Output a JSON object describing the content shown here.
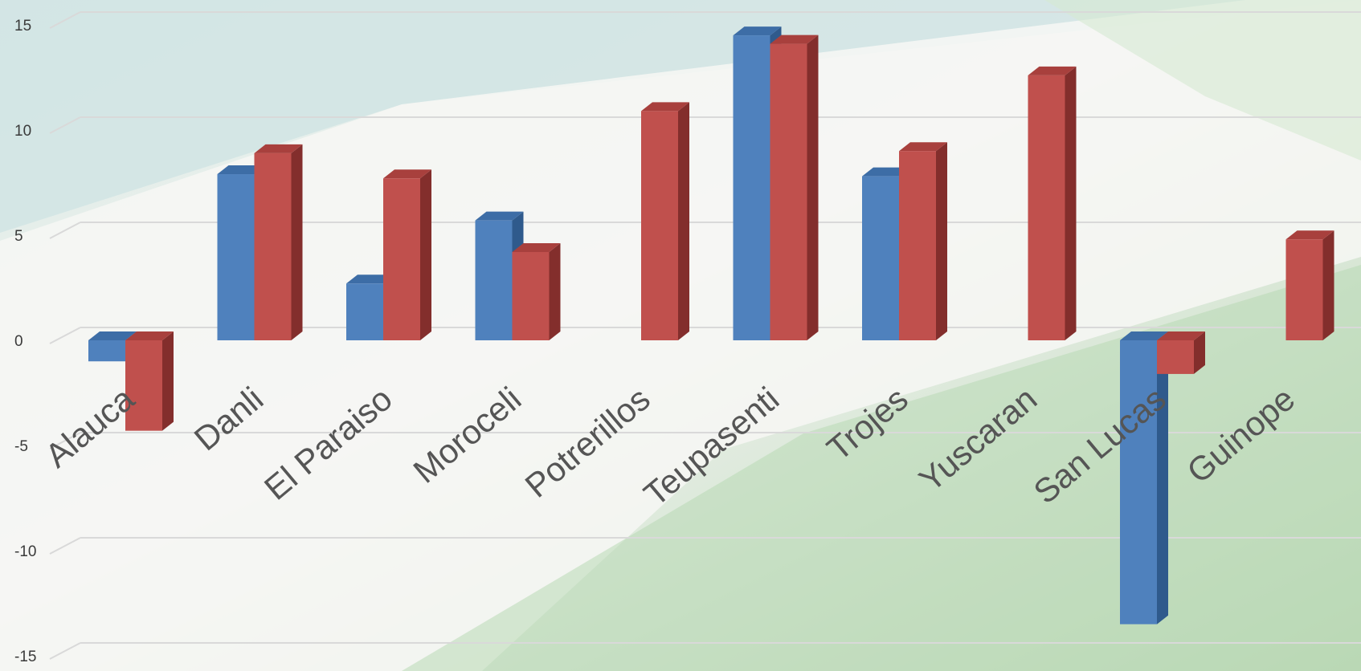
{
  "chart_data": {
    "type": "bar",
    "categories": [
      "Alauca",
      "Danli",
      "El Paraiso",
      "Moroceli",
      "Potrerillos",
      "Teupasenti",
      "Trojes",
      "Yuscaran",
      "San Lucas",
      "Guinope"
    ],
    "series": [
      {
        "values": [
          -1.0,
          7.9,
          2.7,
          5.7,
          null,
          14.5,
          7.8,
          null,
          -13.5,
          null
        ]
      },
      {
        "values": [
          -4.3,
          8.9,
          7.7,
          4.2,
          10.9,
          14.1,
          9.0,
          12.6,
          -1.6,
          4.8
        ]
      }
    ],
    "ylim": [
      -15,
      15
    ],
    "yticks": [
      15,
      10,
      5,
      0,
      -5,
      -10,
      -15
    ],
    "grid": true,
    "style": "3d-clustered-column"
  },
  "colors": {
    "series_front": [
      "#4f81bd",
      "#c0504d"
    ],
    "series_top": [
      "#3d6da6",
      "#a8403d"
    ],
    "series_side": [
      "#2f5a8c",
      "#832e2c"
    ]
  }
}
